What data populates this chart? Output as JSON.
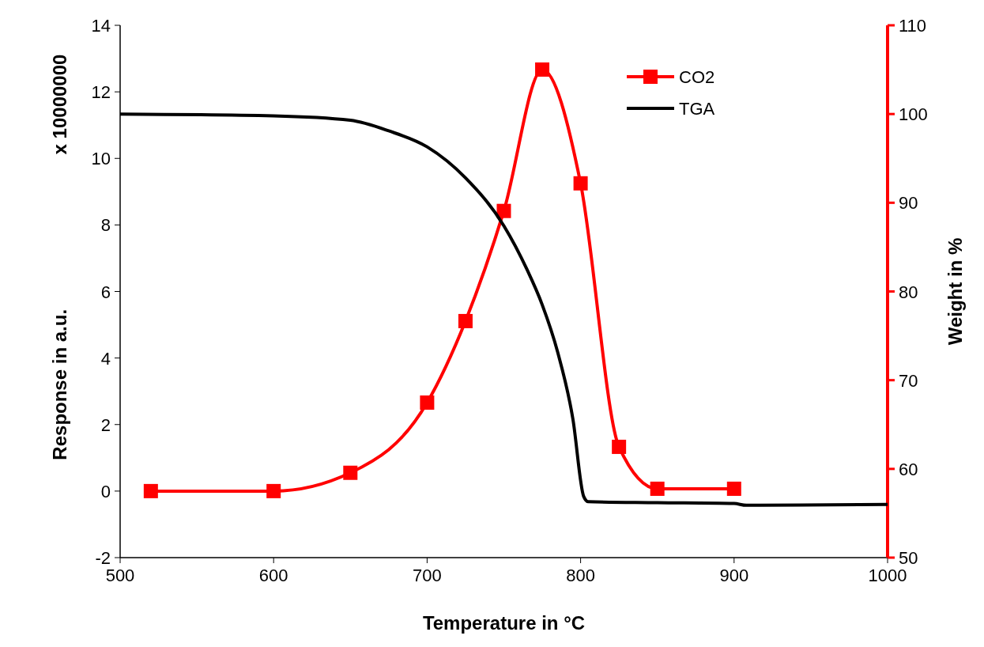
{
  "chart_data": {
    "type": "line",
    "xlabel": "Temperature in °C",
    "ylabel": "Response in a.u.",
    "y2label": "Weight in %",
    "annotations": [
      "x 10000000"
    ],
    "xlim": [
      500,
      1000
    ],
    "xticks": [
      500,
      600,
      700,
      800,
      900,
      1000
    ],
    "ylim": [
      -2,
      14
    ],
    "yticks": [
      -2,
      0,
      2,
      4,
      6,
      8,
      10,
      12,
      14
    ],
    "y2lim": [
      50,
      110
    ],
    "y2ticks": [
      50,
      60,
      70,
      80,
      90,
      100,
      110
    ],
    "legend": "top right",
    "grid": false,
    "series": [
      {
        "name": "CO2",
        "color": "#ff0000",
        "marker": "square",
        "x": [
          520,
          600,
          650,
          700,
          725,
          750,
          775,
          800,
          825,
          850,
          900
        ],
        "values": [
          0,
          0,
          0.55,
          2.66,
          5.11,
          8.42,
          12.67,
          9.25,
          1.33,
          0.07,
          0.07
        ]
      },
      {
        "name": "TGA",
        "color": "#000000",
        "marker": "none",
        "axis": "y2",
        "x": [
          500,
          600,
          650,
          675,
          700,
          725,
          750,
          765,
          775,
          785,
          795,
          802,
          805,
          850,
          900,
          908,
          1000
        ],
        "values": [
          100,
          99.8,
          99.3,
          98.1,
          96.3,
          92.8,
          87.4,
          82.5,
          78.5,
          73.2,
          65.6,
          56.9,
          56.3,
          56.2,
          56.1,
          55.9,
          56.0
        ]
      }
    ]
  }
}
